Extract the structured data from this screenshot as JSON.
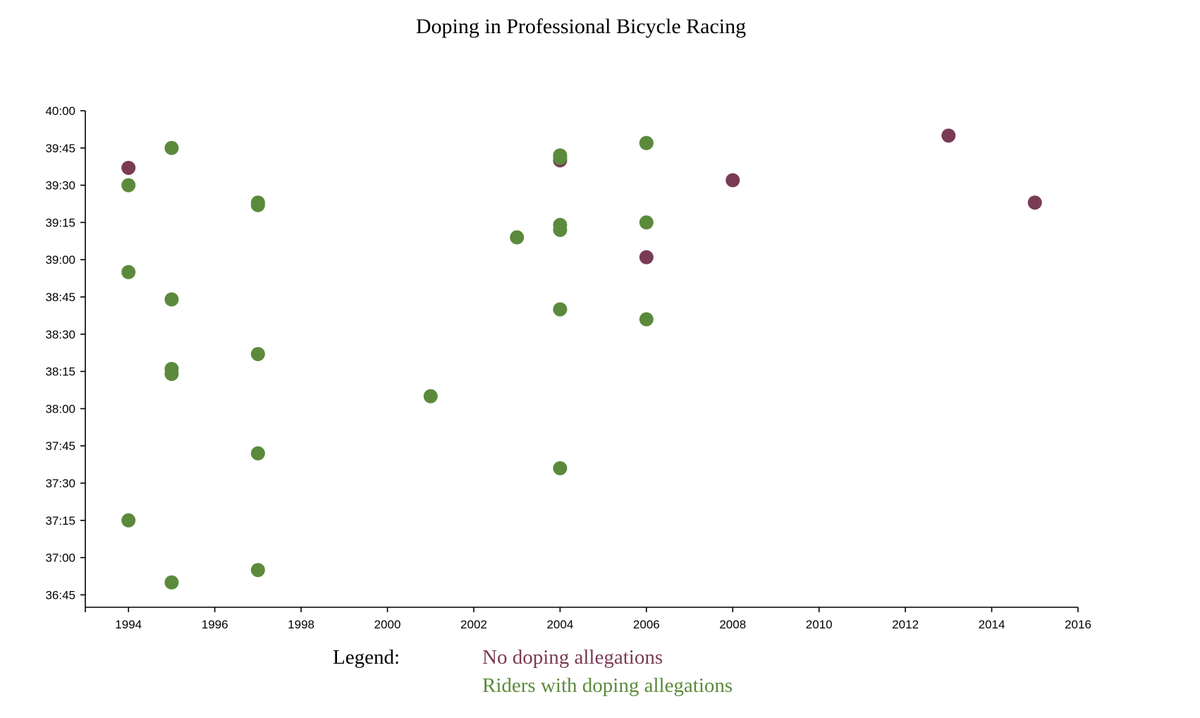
{
  "chart_data": {
    "type": "scatter",
    "title": "Doping in Professional Bicycle Racing",
    "xlabel": "",
    "ylabel": "",
    "x_range": [
      1993,
      2016
    ],
    "y_range": [
      "36:40",
      "40:00"
    ],
    "x_ticks": [
      "1994",
      "1996",
      "1998",
      "2000",
      "2002",
      "2004",
      "2006",
      "2008",
      "2010",
      "2012",
      "2014",
      "2016"
    ],
    "y_ticks": [
      "40:00",
      "39:45",
      "39:30",
      "39:15",
      "39:00",
      "38:45",
      "38:30",
      "38:15",
      "38:00",
      "37:45",
      "37:30",
      "37:15",
      "37:00",
      "36:45"
    ],
    "colors": {
      "no_doping": "#7a3b54",
      "doping": "#5b8a3c"
    },
    "legend": {
      "title": "Legend:",
      "placement": "bottom-center"
    },
    "series": [
      {
        "name": "No doping allegations",
        "color": "#7a3b54",
        "points": [
          {
            "year": 1994,
            "time": "39:37"
          },
          {
            "year": 2004,
            "time": "39:40"
          },
          {
            "year": 2006,
            "time": "39:01"
          },
          {
            "year": 2008,
            "time": "39:32"
          },
          {
            "year": 2013,
            "time": "39:50"
          },
          {
            "year": 2015,
            "time": "39:23"
          }
        ]
      },
      {
        "name": "Riders with doping allegations",
        "color": "#5b8a3c",
        "points": [
          {
            "year": 1995,
            "time": "39:45"
          },
          {
            "year": 1994,
            "time": "39:30"
          },
          {
            "year": 1997,
            "time": "39:23"
          },
          {
            "year": 1997,
            "time": "39:22"
          },
          {
            "year": 2006,
            "time": "39:47"
          },
          {
            "year": 2006,
            "time": "39:47"
          },
          {
            "year": 2004,
            "time": "39:42"
          },
          {
            "year": 2004,
            "time": "39:41"
          },
          {
            "year": 2004,
            "time": "39:14"
          },
          {
            "year": 2004,
            "time": "39:12"
          },
          {
            "year": 2003,
            "time": "39:09"
          },
          {
            "year": 2006,
            "time": "39:15"
          },
          {
            "year": 1994,
            "time": "38:55"
          },
          {
            "year": 1995,
            "time": "38:44"
          },
          {
            "year": 2004,
            "time": "38:40"
          },
          {
            "year": 2006,
            "time": "38:36"
          },
          {
            "year": 1997,
            "time": "38:22"
          },
          {
            "year": 1995,
            "time": "38:16"
          },
          {
            "year": 1995,
            "time": "38:14"
          },
          {
            "year": 2001,
            "time": "38:05"
          },
          {
            "year": 1997,
            "time": "37:42"
          },
          {
            "year": 2004,
            "time": "37:36"
          },
          {
            "year": 1994,
            "time": "37:15"
          },
          {
            "year": 1997,
            "time": "36:55"
          },
          {
            "year": 1995,
            "time": "36:50"
          }
        ]
      }
    ]
  }
}
